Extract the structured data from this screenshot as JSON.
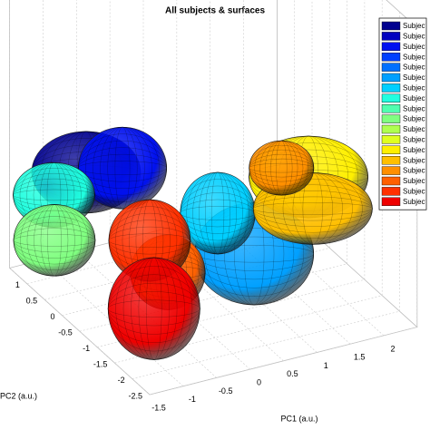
{
  "chart_data": {
    "type": "ellipsoid3d",
    "title": "All subjects & surfaces",
    "xlabel": "PC1 (a.u.)",
    "ylabel": "PC2 (a.u.)",
    "xlim": [
      -1.5,
      2.5
    ],
    "xticks": [
      -1.5,
      -1,
      -0.5,
      0,
      0.5,
      1,
      1.5,
      2
    ],
    "ylim": [
      -2.5,
      1.5
    ],
    "yticks": [
      -2.5,
      -2,
      -1.5,
      -1,
      -0.5,
      0,
      0.5,
      1
    ],
    "grid": true,
    "legend": "upper right",
    "series": [
      {
        "name": "Subject",
        "color": "#00008f",
        "x": -1.01,
        "y": 0.25,
        "size": [
          1.6,
          1.2
        ]
      },
      {
        "name": "Subject",
        "color": "#0000bf"
      },
      {
        "name": "Subject",
        "color": "#0010ef",
        "x": -0.53,
        "y": 0.13,
        "size": [
          1.3,
          1.2
        ]
      },
      {
        "name": "Subject",
        "color": "#0040ff"
      },
      {
        "name": "Subject",
        "color": "#0070ff"
      },
      {
        "name": "Subject",
        "color": "#00a0ff",
        "x": -0.1,
        "y": -2.81,
        "size": [
          1.75,
          1.5
        ]
      },
      {
        "name": "Subject",
        "color": "#00cfff",
        "x": 0.0,
        "y": -1.58,
        "size": [
          1.1,
          1.2
        ]
      },
      {
        "name": "Subject",
        "color": "#20ffdf",
        "x": -1.68,
        "y": -0.11,
        "size": [
          1.2,
          0.95
        ]
      },
      {
        "name": "Subject",
        "color": "#50ffaf"
      },
      {
        "name": "Subject",
        "color": "#80ff80",
        "x": -2.26,
        "y": -1.23,
        "size": [
          1.2,
          1.05
        ]
      },
      {
        "name": "Subject",
        "color": "#afff50"
      },
      {
        "name": "Subject",
        "color": "#dfff20"
      },
      {
        "name": "Subject",
        "color": "#ffef00",
        "x": 1.53,
        "y": -1.25,
        "size": [
          1.75,
          1.2
        ]
      },
      {
        "name": "Subject",
        "color": "#ffbf00",
        "x": 1.17,
        "y": -2.06,
        "size": [
          1.75,
          1.05
        ]
      },
      {
        "name": "Subject",
        "color": "#ff8f00",
        "x": 1.33,
        "y": -0.86,
        "size": [
          0.95,
          0.8
        ]
      },
      {
        "name": "Subject",
        "color": "#ff6000",
        "x": -1.35,
        "y": -2.73,
        "size": [
          1.1,
          1.1
        ]
      },
      {
        "name": "Subject",
        "color": "#ff3000",
        "x": -1.15,
        "y": -1.83,
        "size": [
          1.2,
          1.2
        ]
      },
      {
        "name": "Subject",
        "color": "#ef0000",
        "x": -1.98,
        "y": -3.54,
        "size": [
          1.35,
          1.5
        ]
      }
    ]
  }
}
